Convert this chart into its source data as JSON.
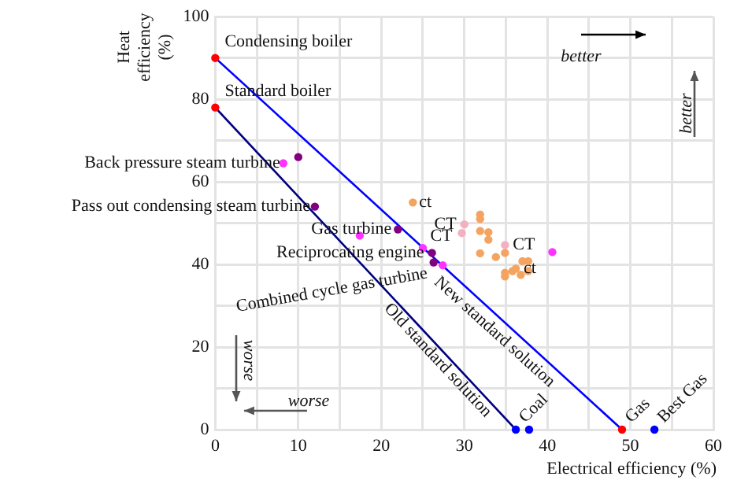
{
  "chart_data": {
    "type": "scatter",
    "xlabel": "Electrical efficiency (%)",
    "ylabel": "Heat efficiency (%)",
    "xlim": [
      0,
      60
    ],
    "ylim": [
      0,
      100
    ],
    "xticks": [
      0,
      {
        "value": 5,
        "label": null
      },
      10,
      {
        "value": 15,
        "label": null
      },
      20,
      {
        "value": 25,
        "label": null
      },
      30,
      {
        "value": 35,
        "label": null
      },
      40,
      {
        "value": 45,
        "label": null
      },
      50,
      {
        "value": 55,
        "label": null
      },
      60
    ],
    "yticks": [
      0,
      {
        "value": 10,
        "label": null
      },
      20,
      {
        "value": 30,
        "label": null
      },
      40,
      {
        "value": 50,
        "label": null
      },
      60,
      {
        "value": 70,
        "label": null
      },
      80,
      {
        "value": 90,
        "label": null
      },
      100
    ],
    "grid": true,
    "legend": false,
    "marker": "circle",
    "series": [
      {
        "type": "line",
        "color": "#000080",
        "x": [
          0,
          36.2
        ],
        "values": [
          78,
          0
        ],
        "marker": "none",
        "line_style": "solid"
      },
      {
        "type": "line",
        "color": "#0000ff",
        "x": [
          0,
          49
        ],
        "values": [
          90,
          0
        ],
        "marker": "none",
        "line_style": "solid"
      },
      {
        "color": "#ff0000",
        "x": [
          0,
          0,
          49
        ],
        "values": [
          90,
          78,
          0
        ]
      },
      {
        "color": "#ff33ff",
        "x": [
          8.2,
          17.4,
          25,
          27.4,
          40.6
        ],
        "values": [
          64.5,
          47,
          44,
          39.8,
          43
        ]
      },
      {
        "color": "#800080",
        "x": [
          10,
          12,
          22,
          26.1,
          26.3
        ],
        "values": [
          66,
          54,
          48.5,
          42.8,
          40.5
        ]
      },
      {
        "color": "#f4a460",
        "x": [
          23.8,
          31.9,
          31.9,
          31.9,
          32.9,
          32.9,
          31.9,
          33.8,
          34.9,
          37,
          37.7,
          34.9,
          34.9,
          35.8,
          36.8,
          37.7,
          36.2
        ],
        "values": [
          55,
          52.1,
          51,
          48.1,
          47.8,
          46,
          42.7,
          41.8,
          42.8,
          40.8,
          40.8,
          37.1,
          38,
          38.4,
          37.5,
          38.4,
          39
        ]
      },
      {
        "color": "#f4b0c0",
        "x": [
          30,
          29.7,
          34.9
        ],
        "values": [
          49.7,
          47.6,
          44.7
        ]
      },
      {
        "color": "#0000ff",
        "x": [
          36.2,
          37.8,
          52.9
        ],
        "values": [
          0,
          0,
          0
        ]
      }
    ],
    "annotations": [
      {
        "text": "Condensing boiler",
        "x": 0,
        "y": 90
      },
      {
        "text": "Standard boiler",
        "x": 0,
        "y": 78
      },
      {
        "text": "Back pressure steam turbine",
        "x": 8.2,
        "y": 64.5
      },
      {
        "text": "Pass out condensing steam turbine",
        "x": 12,
        "y": 54
      },
      {
        "text": "Gas turbine",
        "x": 22,
        "y": 48.5
      },
      {
        "text": "Reciprocating engine",
        "x": 26.1,
        "y": 42.8
      },
      {
        "text": "Combined cycle gas turbine",
        "x": 26.3,
        "y": 40.5
      },
      {
        "text": "ct",
        "x": 23.8,
        "y": 55
      },
      {
        "text": "CT",
        "x": 30,
        "y": 49.7
      },
      {
        "text": "CT",
        "x": 29.7,
        "y": 47.6
      },
      {
        "text": "CT",
        "x": 34.9,
        "y": 44.7
      },
      {
        "text": "ct",
        "x": 36.2,
        "y": 39
      },
      {
        "text": "Coal",
        "x": 36.2,
        "y": 0
      },
      {
        "text": "Gas",
        "x": 49,
        "y": 0
      },
      {
        "text": "Best Gas",
        "x": 52.9,
        "y": 0
      },
      "Old standard solution",
      "New standard solution",
      "better",
      "better",
      "worse",
      "worse"
    ]
  }
}
